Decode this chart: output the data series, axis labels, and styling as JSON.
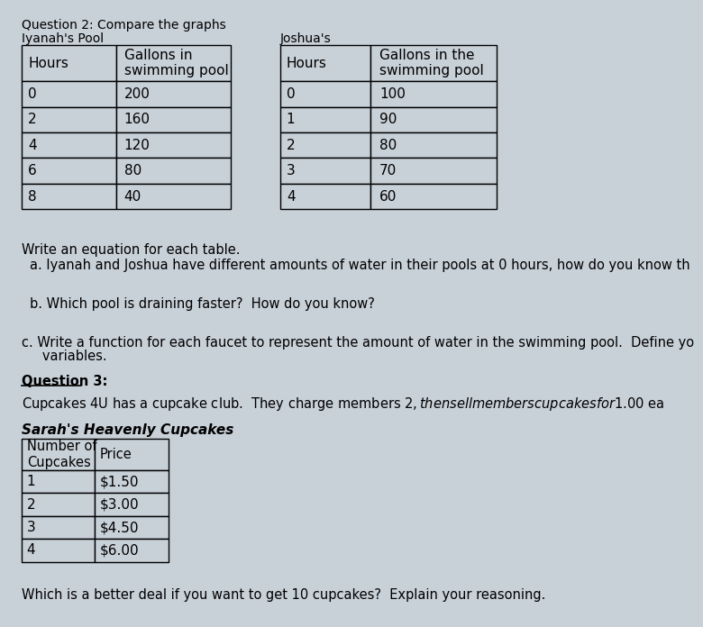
{
  "bg_color": "#c8d0d8",
  "title_q2": "Question 2: Compare the graphs",
  "iyanah_label": "Iyanah's Pool",
  "joshua_label": "Joshua's",
  "iyanah_headers": [
    "Hours",
    "Gallons in\nswimming pool"
  ],
  "iyanah_rows": [
    [
      "0",
      "200"
    ],
    [
      "2",
      "160"
    ],
    [
      "4",
      "120"
    ],
    [
      "6",
      "80"
    ],
    [
      "8",
      "40"
    ]
  ],
  "joshua_headers": [
    "Hours",
    "Gallons in the\nswimming pool"
  ],
  "joshua_rows": [
    [
      "0",
      "100"
    ],
    [
      "1",
      "90"
    ],
    [
      "2",
      "80"
    ],
    [
      "3",
      "70"
    ],
    [
      "4",
      "60"
    ]
  ],
  "text_write_eq": "Write an equation for each table.",
  "text_a": "a. Iyanah and Joshua have different amounts of water in their pools at 0 hours, how do you know th",
  "text_b": "b. Which pool is draining faster?  How do you know?",
  "text_c1": "c. Write a function for each faucet to represent the amount of water in the swimming pool.  Define yo",
  "text_c2": "   variables.",
  "title_q3": "Question 3:",
  "text_q3_body": "Cupcakes 4U has a cupcake club.  They charge members $2, then sell members cupcakes for $1.00 ea",
  "sarah_label": "Sarah's Heavenly Cupcakes",
  "sarah_headers": [
    "Number of\nCupcakes",
    "Price"
  ],
  "sarah_rows": [
    [
      "1",
      "$1.50"
    ],
    [
      "2",
      "$3.00"
    ],
    [
      "3",
      "$4.50"
    ],
    [
      "4",
      "$6.00"
    ]
  ],
  "text_final": "Which is a better deal if you want to get 10 cupcakes?  Explain your reasoning."
}
